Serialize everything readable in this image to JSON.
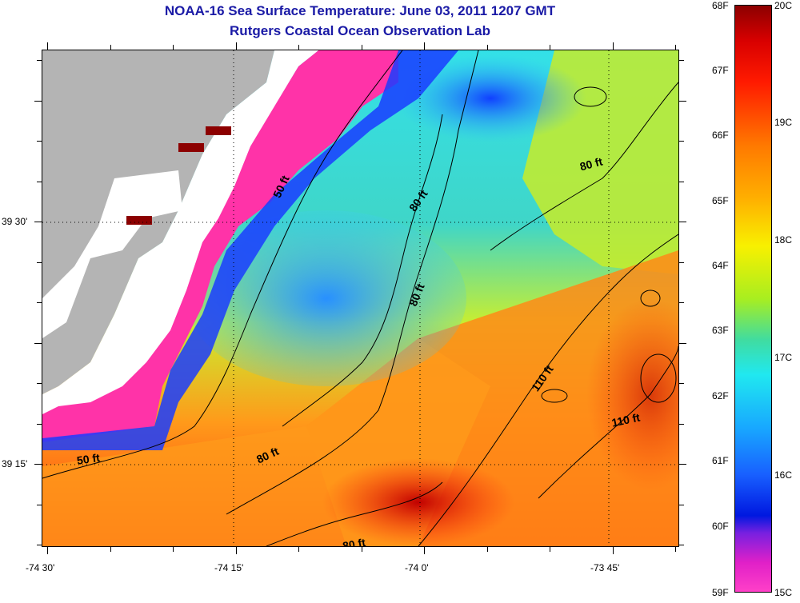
{
  "title": "NOAA-16 Sea Surface Temperature:  June 03, 2011 1207 GMT",
  "subtitle": "Rutgers Coastal Ocean Observation Lab",
  "colors": {
    "title": "#1a1aa6",
    "land": "#b4b4b4",
    "cloud_mask": "#ffffff",
    "cold_pink": "#ff33a8",
    "warm_dark": "#8c0000"
  },
  "map": {
    "lat_labels": [
      "39 30'",
      "39 15'"
    ],
    "lon_labels": [
      "-74 30'",
      "-74 15'",
      "-74 0'",
      "-73 45'"
    ],
    "contour_labels": [
      "50 ft",
      "80 ft",
      "80 ft",
      "80 ft",
      "110 ft",
      "110 ft",
      "80 ft",
      "50 ft",
      "80 ft"
    ]
  },
  "colorbar": {
    "fahrenheit": [
      "68F",
      "67F",
      "66F",
      "65F",
      "64F",
      "63F",
      "62F",
      "61F",
      "60F",
      "59F"
    ],
    "celsius": [
      "20C",
      "19C",
      "18C",
      "17C",
      "16C",
      "15C"
    ]
  }
}
